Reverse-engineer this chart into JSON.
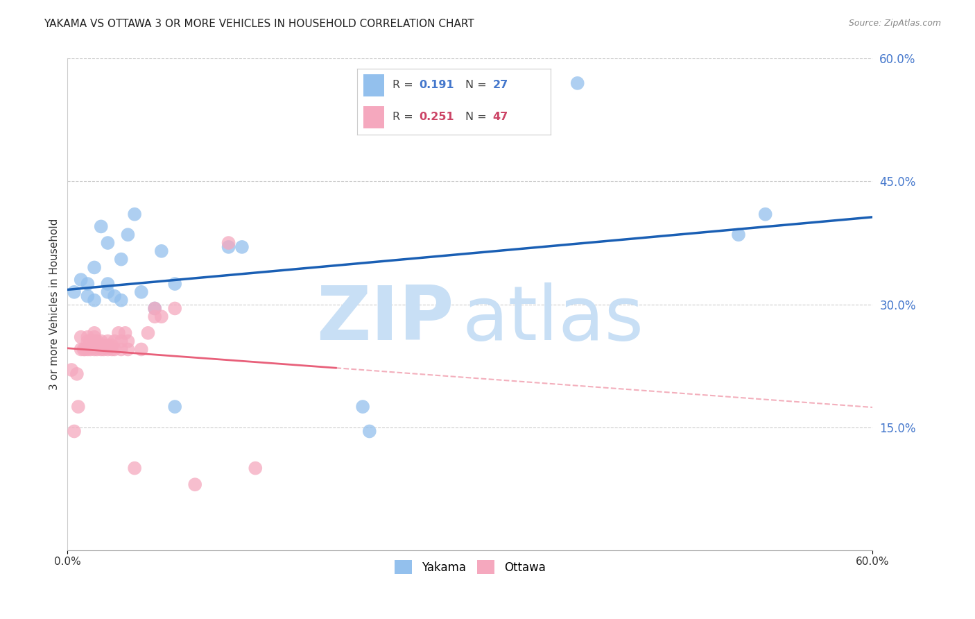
{
  "title": "YAKAMA VS OTTAWA 3 OR MORE VEHICLES IN HOUSEHOLD CORRELATION CHART",
  "source": "Source: ZipAtlas.com",
  "ylabel": "3 or more Vehicles in Household",
  "legend_yakama": "Yakama",
  "legend_ottawa": "Ottawa",
  "R_yakama": 0.191,
  "N_yakama": 27,
  "R_ottawa": 0.251,
  "N_ottawa": 47,
  "xmin": 0.0,
  "xmax": 0.6,
  "ymin": 0.0,
  "ymax": 0.6,
  "ytick_right_labels": [
    "15.0%",
    "30.0%",
    "45.0%",
    "60.0%"
  ],
  "ytick_right_values": [
    0.15,
    0.3,
    0.45,
    0.6
  ],
  "color_yakama": "#93c0ed",
  "color_ottawa": "#f5a8be",
  "color_line_yakama": "#1a5fb4",
  "color_line_ottawa": "#e8607a",
  "color_grid": "#cccccc",
  "color_right_ticks": "#4477cc",
  "watermark_zip": "ZIP",
  "watermark_atlas": "atlas",
  "watermark_color_zip": "#c8dff5",
  "watermark_color_atlas": "#c8dff5",
  "yakama_x": [
    0.005,
    0.01,
    0.015,
    0.015,
    0.02,
    0.02,
    0.025,
    0.03,
    0.03,
    0.03,
    0.035,
    0.04,
    0.04,
    0.045,
    0.05,
    0.055,
    0.065,
    0.07,
    0.08,
    0.08,
    0.12,
    0.13,
    0.22,
    0.225,
    0.38,
    0.5,
    0.52
  ],
  "yakama_y": [
    0.315,
    0.33,
    0.31,
    0.325,
    0.305,
    0.345,
    0.395,
    0.315,
    0.325,
    0.375,
    0.31,
    0.305,
    0.355,
    0.385,
    0.41,
    0.315,
    0.295,
    0.365,
    0.325,
    0.175,
    0.37,
    0.37,
    0.175,
    0.145,
    0.57,
    0.385,
    0.41
  ],
  "ottawa_x": [
    0.003,
    0.005,
    0.007,
    0.008,
    0.01,
    0.01,
    0.012,
    0.013,
    0.015,
    0.015,
    0.015,
    0.017,
    0.017,
    0.02,
    0.02,
    0.02,
    0.02,
    0.022,
    0.022,
    0.025,
    0.025,
    0.025,
    0.027,
    0.027,
    0.03,
    0.03,
    0.03,
    0.033,
    0.033,
    0.035,
    0.035,
    0.038,
    0.04,
    0.04,
    0.043,
    0.045,
    0.045,
    0.05,
    0.055,
    0.06,
    0.065,
    0.065,
    0.07,
    0.08,
    0.095,
    0.12,
    0.14
  ],
  "ottawa_y": [
    0.22,
    0.145,
    0.215,
    0.175,
    0.245,
    0.26,
    0.245,
    0.245,
    0.245,
    0.255,
    0.26,
    0.245,
    0.255,
    0.245,
    0.255,
    0.26,
    0.265,
    0.245,
    0.255,
    0.245,
    0.25,
    0.255,
    0.245,
    0.25,
    0.245,
    0.25,
    0.255,
    0.245,
    0.25,
    0.245,
    0.255,
    0.265,
    0.245,
    0.255,
    0.265,
    0.245,
    0.255,
    0.1,
    0.245,
    0.265,
    0.285,
    0.295,
    0.285,
    0.295,
    0.08,
    0.375,
    0.1
  ]
}
